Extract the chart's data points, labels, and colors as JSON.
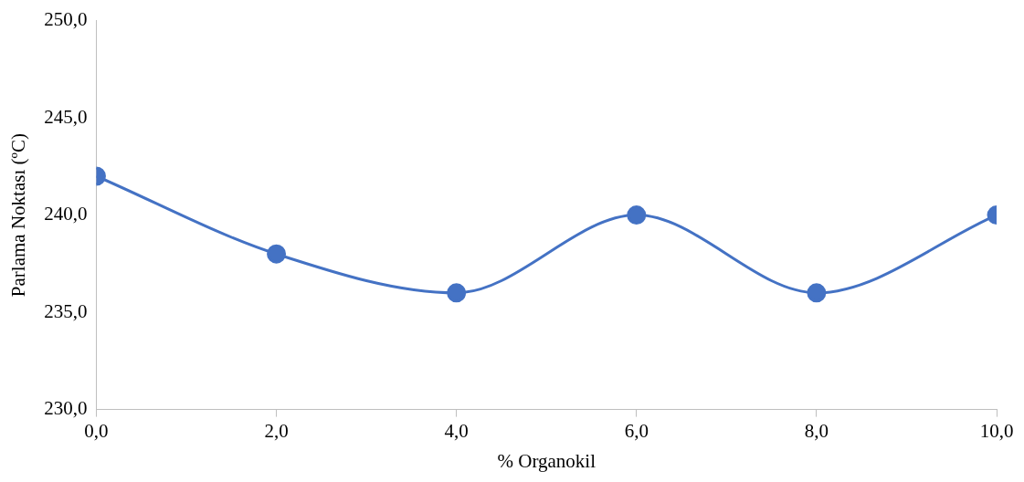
{
  "chart_data": {
    "type": "line",
    "xlabel": "% Organokil",
    "ylabel": "Parlama Noktası (ºC)",
    "x": [
      0,
      2,
      4,
      6,
      8,
      10
    ],
    "series": [
      {
        "color": "#4472c4",
        "values": [
          242,
          238,
          236,
          240,
          236,
          240
        ]
      }
    ],
    "marker": "circle",
    "xlim": [
      0,
      10
    ],
    "xticks": [
      {
        "value": 0,
        "label": "0,0"
      },
      {
        "value": 2,
        "label": "2,0"
      },
      {
        "value": 4,
        "label": "4,0"
      },
      {
        "value": 6,
        "label": "6,0"
      },
      {
        "value": 8,
        "label": "8,0"
      },
      {
        "value": 10,
        "label": "10,0"
      }
    ],
    "ylim": [
      230,
      250
    ],
    "yticks": [
      {
        "value": 230,
        "label": "230,0"
      },
      {
        "value": 235,
        "label": "235,0"
      },
      {
        "value": 240,
        "label": "240,0"
      },
      {
        "value": 245,
        "label": "245,0"
      },
      {
        "value": 250,
        "label": "250,0"
      }
    ]
  }
}
